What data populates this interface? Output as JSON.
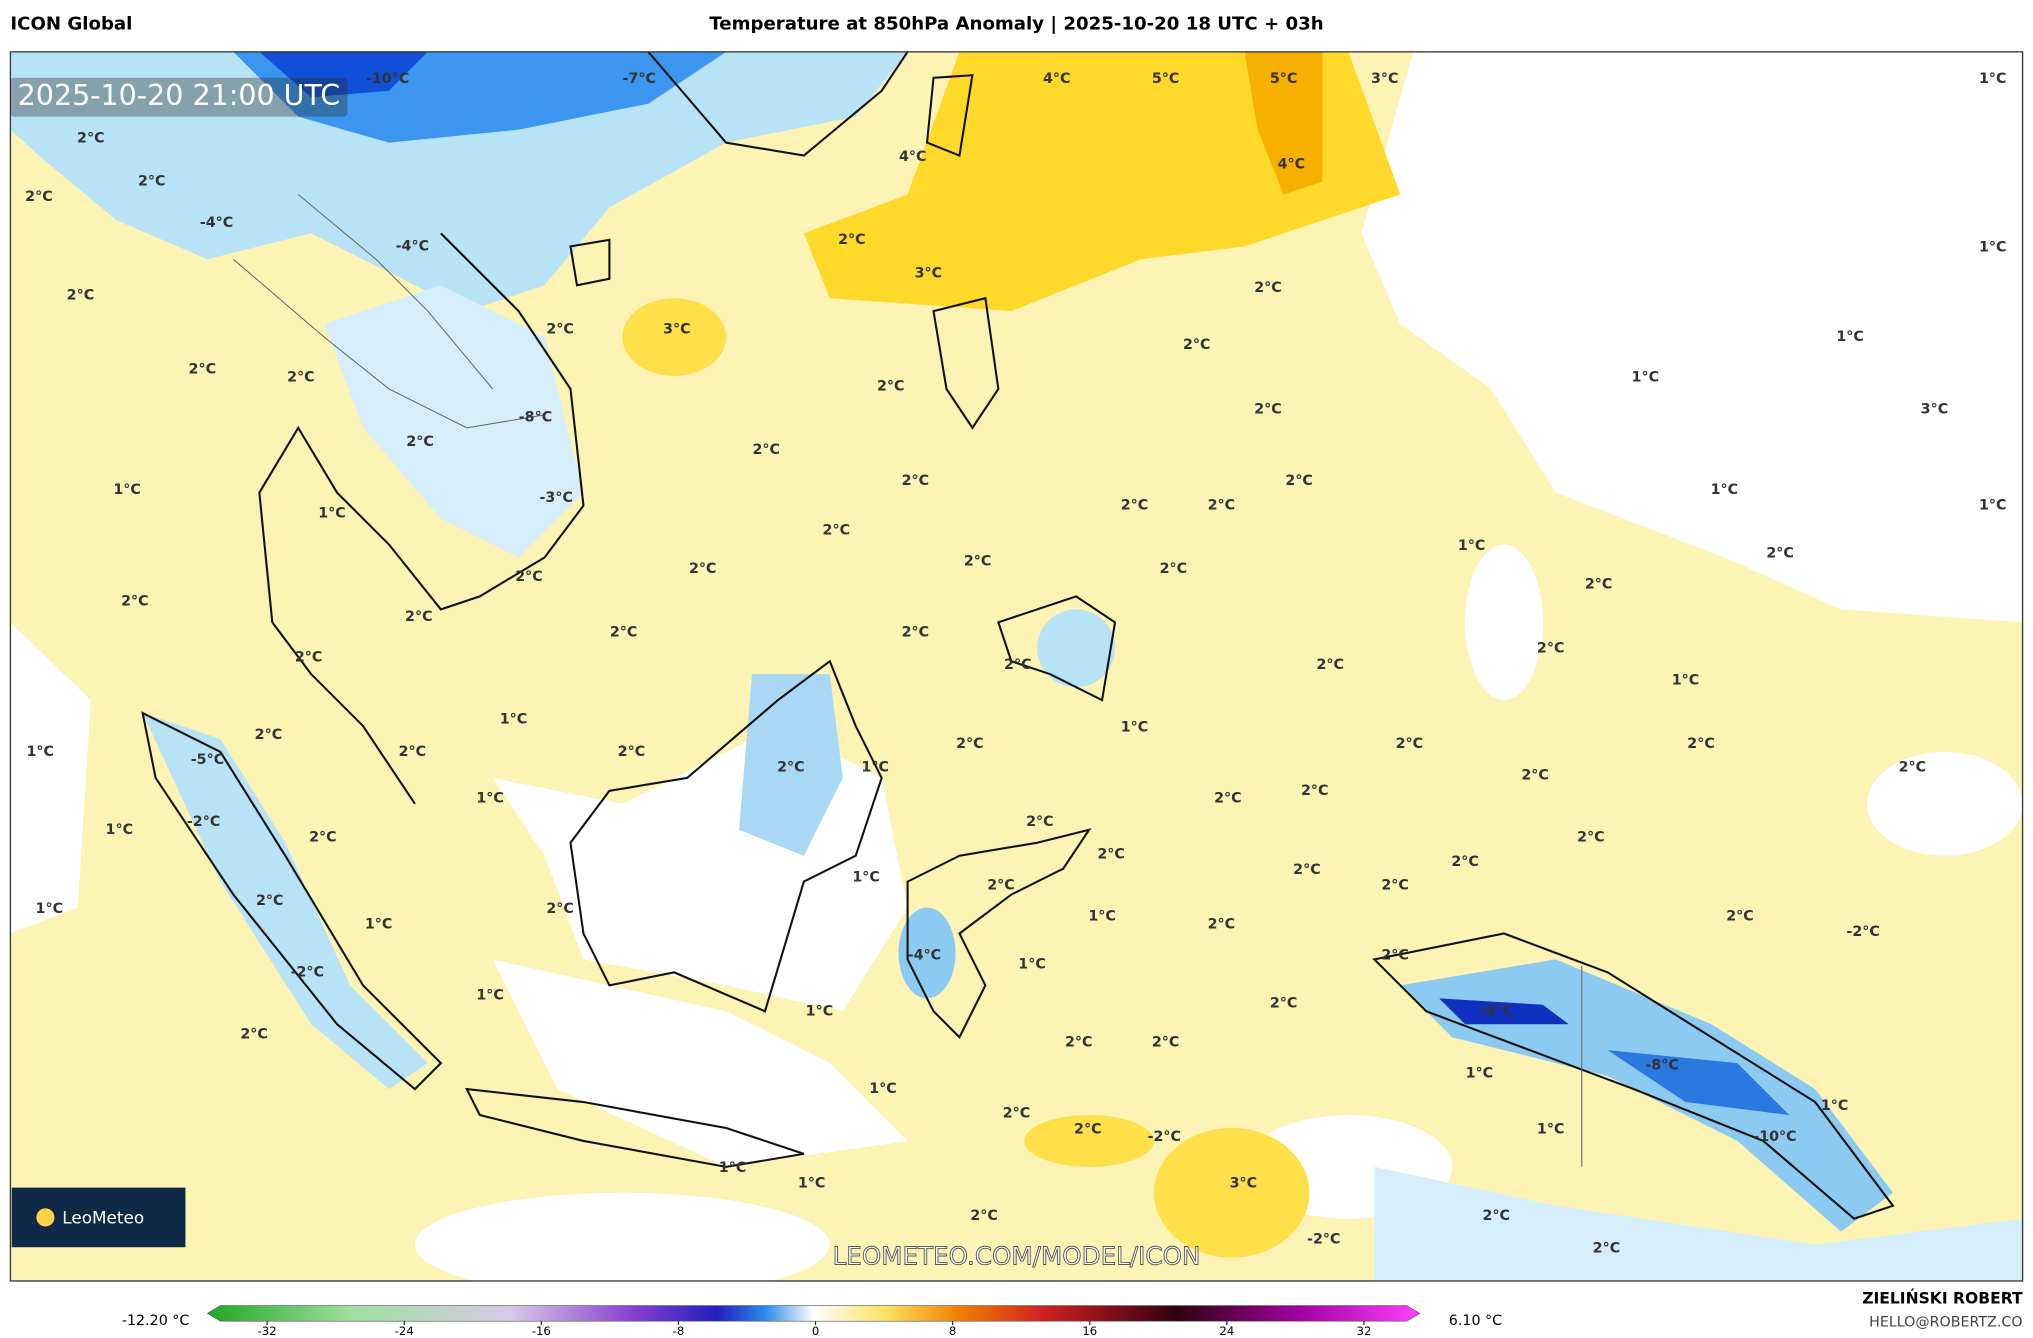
{
  "header": {
    "left": "ICON Global",
    "title": "Temperature at 850hPa Anomaly | 2025-10-20 18 UTC + 03h"
  },
  "map": {
    "timestamp": "2025-10-20 21:00 UTC",
    "watermark": "LEOMETEO.COM/MODEL/ICON",
    "logo": "LeoMeteo",
    "contour_labels": [
      "-10°C",
      "-7°C",
      "4°C",
      "5°C",
      "5°C",
      "3°C",
      "1°C",
      "2°C",
      "2°C",
      "2°C",
      "-4°C",
      "-4°C",
      "4°C",
      "4°C",
      "2°C",
      "3°C",
      "1°C",
      "2°C",
      "2°C",
      "2°C",
      "3°C",
      "2°C",
      "1°C",
      "2°C",
      "2°C",
      "2°C",
      "1°C",
      "-8°C",
      "2°C",
      "3°C",
      "2°C",
      "2°C",
      "2°C",
      "2°C",
      "1°C",
      "1°C",
      "-3°C",
      "1°C",
      "2°C",
      "2°C",
      "1°C",
      "2°C",
      "1°C",
      "2°C",
      "2°C",
      "2°C",
      "2°C",
      "2°C",
      "2°C",
      "2°C",
      "2°C",
      "2°C",
      "2°C",
      "2°C",
      "2°C",
      "2°C",
      "2°C",
      "1°C",
      "1°C",
      "1°C",
      "2°C",
      "2°C",
      "2°C",
      "2°C",
      "1°C",
      "-5°C",
      "2°C",
      "2°C",
      "1°C",
      "2°C",
      "2°C",
      "2°C",
      "2°C",
      "1°C",
      "2°C",
      "1°C",
      "-2°C",
      "2°C",
      "2°C",
      "2°C",
      "2°C",
      "1°C",
      "2°C",
      "2°C",
      "2°C",
      "2°C",
      "1°C",
      "2°C",
      "2°C",
      "2°C",
      "1°C",
      "1°C",
      "2°C",
      "-2°C",
      "-4°C",
      "2°C",
      "1°C",
      "-2°C",
      "1°C",
      "2°C",
      "-9°C",
      "1°C",
      "2°C",
      "2°C",
      "2°C",
      "-8°C",
      "1°C",
      "1°C",
      "1°C",
      "2°C",
      "2°C",
      "-2°C",
      "1°C",
      "-10°C",
      "1°C",
      "1°C",
      "3°C",
      "2°C",
      "2°C",
      "-2°C",
      "2°C"
    ]
  },
  "colorbar": {
    "min_label": "-12.20 °C",
    "max_label": "6.10 °C",
    "ticks": [
      -32,
      -24,
      -16,
      -8,
      0,
      8,
      16,
      24,
      32
    ]
  },
  "footer": {
    "author": "ZIELIŃSKI ROBERT",
    "email": "HELLO@ROBERTZ.CO"
  }
}
